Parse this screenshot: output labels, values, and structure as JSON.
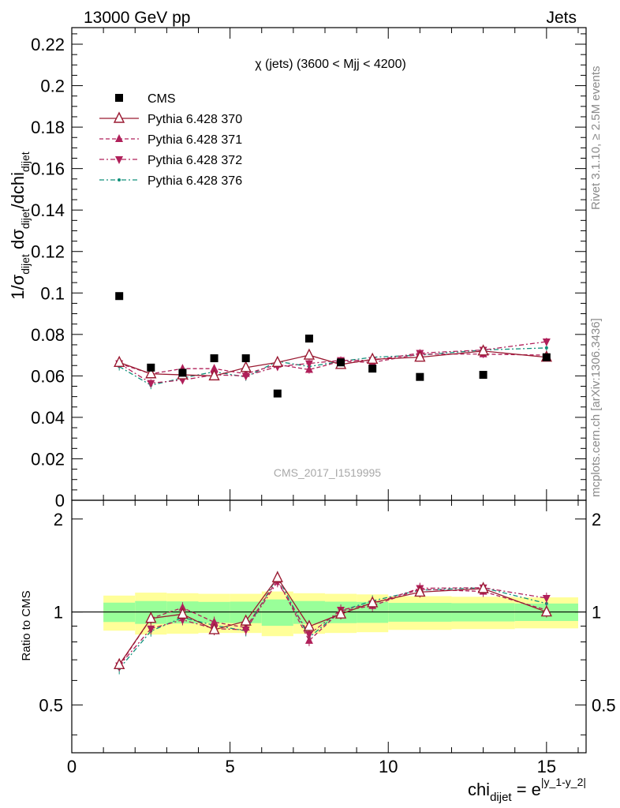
{
  "header": {
    "left": "13000 GeV pp",
    "right": "Jets"
  },
  "side": {
    "rivet": "Rivet 3.1.10, ≥ 2.5M events",
    "mcplots": "mcplots.cern.ch [arXiv:1306.3436]"
  },
  "chart_data": {
    "type": "scatter",
    "title": "χ (jets) (3600 < Mjj < 4200)",
    "watermark": "CMS_2017_I1519995",
    "ylabel_parts": {
      "a": "1/σ",
      "a_sub": "dijet",
      "b": " dσ",
      "b_sub": "dijet",
      "c": "/dchi",
      "c_sub": "dijet"
    },
    "xlabel_parts": {
      "base": "chi",
      "sub": "dijet",
      "eq": " = e",
      "sup": "|y_1-y_2|"
    },
    "ratio_ylabel": "Ratio to CMS",
    "xlim": [
      0,
      16.25
    ],
    "ylim": [
      0,
      0.228
    ],
    "ratio_ylim": [
      0.35,
      2.3
    ],
    "x_ticks": [
      "0",
      "5",
      "10",
      "15"
    ],
    "x_tick_values": [
      0,
      5,
      10,
      15
    ],
    "y_ticks": [
      "0",
      "0.02",
      "0.04",
      "0.06",
      "0.08",
      "0.1",
      "0.12",
      "0.14",
      "0.16",
      "0.18",
      "0.2",
      "0.22"
    ],
    "y_tick_values": [
      0,
      0.02,
      0.04,
      0.06,
      0.08,
      0.1,
      0.12,
      0.14,
      0.16,
      0.18,
      0.2,
      0.22
    ],
    "ratio_ticks": [
      "0.5",
      "1",
      "2"
    ],
    "ratio_tick_values": [
      0.5,
      1,
      2
    ],
    "bins": [
      [
        1,
        2
      ],
      [
        2,
        3
      ],
      [
        3,
        4
      ],
      [
        4,
        5
      ],
      [
        5,
        6
      ],
      [
        6,
        7
      ],
      [
        7,
        8
      ],
      [
        8,
        9
      ],
      [
        9,
        10
      ],
      [
        10,
        12
      ],
      [
        12,
        14
      ],
      [
        14,
        16
      ]
    ],
    "x": [
      1.5,
      2.5,
      3.5,
      4.5,
      5.5,
      6.5,
      7.5,
      8.5,
      9.5,
      11,
      13,
      15
    ],
    "cms": [
      0.0985,
      0.064,
      0.0615,
      0.0685,
      0.0685,
      0.0515,
      0.078,
      0.0665,
      0.0635,
      0.0595,
      0.0605,
      0.069
    ],
    "band_stat": [
      0.072,
      0.085,
      0.082,
      0.078,
      0.08,
      0.098,
      0.085,
      0.08,
      0.078,
      0.07,
      0.068,
      0.065
    ],
    "band_total": [
      0.13,
      0.155,
      0.15,
      0.145,
      0.145,
      0.165,
      0.15,
      0.145,
      0.14,
      0.125,
      0.12,
      0.115
    ],
    "series": [
      {
        "name": "Pythia 6.428 370",
        "color": "#9a1a32",
        "dash": "",
        "marker": "tri-up-open",
        "values": [
          0.0665,
          0.061,
          0.0605,
          0.06,
          0.064,
          0.0665,
          0.07,
          0.0655,
          0.068,
          0.069,
          0.072,
          0.069
        ]
      },
      {
        "name": "Pythia 6.428 371",
        "color": "#b0205a",
        "dash": "5,3",
        "marker": "tri-up",
        "values": [
          0.066,
          0.061,
          0.0635,
          0.0635,
          0.061,
          0.0655,
          0.063,
          0.067,
          0.0665,
          0.0705,
          0.0705,
          0.07
        ]
      },
      {
        "name": "Pythia 6.428 372",
        "color": "#b0205a",
        "dash": "6,3,2,3",
        "marker": "tri-down",
        "values": [
          0.066,
          0.0565,
          0.058,
          0.0605,
          0.06,
          0.0645,
          0.066,
          0.0675,
          0.0675,
          0.071,
          0.0725,
          0.0765
        ]
      },
      {
        "name": "Pythia 6.428 376",
        "color": "#10907a",
        "dash": "6,3,2,3",
        "marker": "dot",
        "values": [
          0.0645,
          0.0555,
          0.059,
          0.062,
          0.0595,
          0.067,
          0.0645,
          0.067,
          0.069,
          0.07,
          0.0725,
          0.0735
        ]
      }
    ],
    "legend_placement": "top-left",
    "cms_legend": "CMS",
    "grid": false
  }
}
